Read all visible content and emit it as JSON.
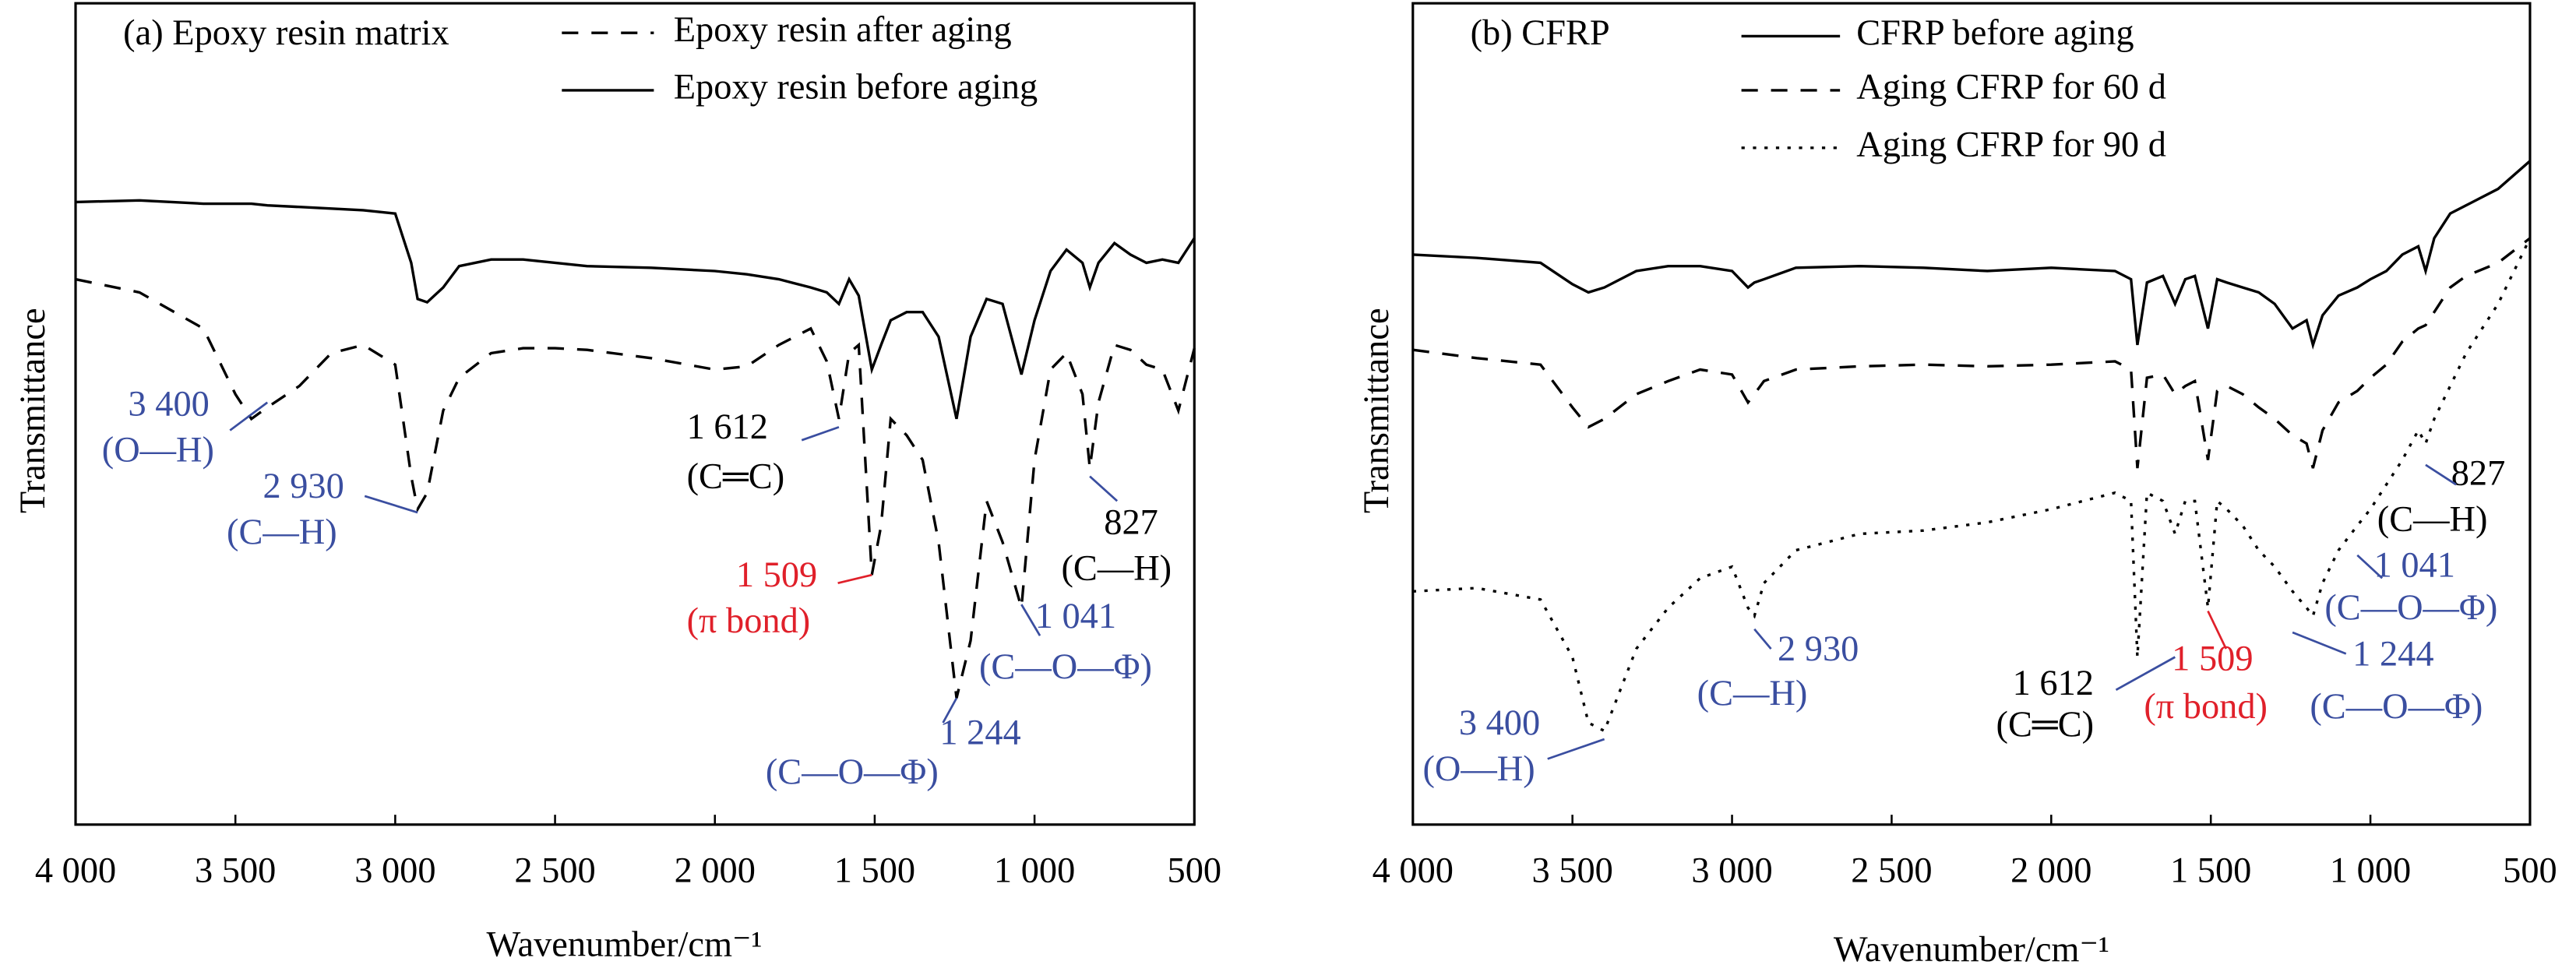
{
  "chart_data": [
    {
      "type": "line",
      "title": "(a) Epoxy resin matrix",
      "x_label": "Wavenumber/cm⁻¹",
      "y_label": "Transmittance",
      "xlim": [
        4000,
        500
      ],
      "ylim": [
        0,
        100
      ],
      "xticks": [
        {
          "value": 4000,
          "label": "4 000"
        },
        {
          "value": 3500,
          "label": "3 500"
        },
        {
          "value": 3000,
          "label": "3 000"
        },
        {
          "value": 2500,
          "label": "2 500"
        },
        {
          "value": 2000,
          "label": "2 000"
        },
        {
          "value": 1500,
          "label": "1 500"
        },
        {
          "value": 1000,
          "label": "1 000"
        },
        500
      ],
      "x": [
        4000,
        3800,
        3600,
        3500,
        3450,
        3400,
        3300,
        3200,
        3100,
        3000,
        2950,
        2930,
        2900,
        2850,
        2800,
        2700,
        2600,
        2500,
        2400,
        2200,
        2000,
        1900,
        1800,
        1700,
        1650,
        1612,
        1580,
        1550,
        1509,
        1480,
        1450,
        1400,
        1350,
        1300,
        1244,
        1200,
        1150,
        1100,
        1041,
        1000,
        950,
        900,
        850,
        827,
        800,
        750,
        700,
        650,
        600,
        550,
        500
      ],
      "series": [
        {
          "name": "Epoxy resin after aging",
          "color": "#000000",
          "style": "dashed",
          "values": [
            66.4,
            64.8,
            60.4,
            52.4,
            49.4,
            50.8,
            53.4,
            57.4,
            58.4,
            56,
            42.4,
            38.4,
            40.4,
            50.4,
            54.4,
            57.4,
            58,
            58,
            57.8,
            56.8,
            55.4,
            55.8,
            58.4,
            60.4,
            56.4,
            49.4,
            57.4,
            58.4,
            30.4,
            36.4,
            49.4,
            47.4,
            44.4,
            34.4,
            15.4,
            22.4,
            39.4,
            34.4,
            26.4,
            44.4,
            55.4,
            57.4,
            52.4,
            43.4,
            51.4,
            58.4,
            57.8,
            56,
            55.4,
            50.4,
            58
          ]
        },
        {
          "name": "Epoxy resin before aging",
          "color": "#000000",
          "style": "solid",
          "values": [
            75.8,
            76,
            75.6,
            75.6,
            75.6,
            75.4,
            75.2,
            75,
            74.8,
            74.4,
            68.4,
            64,
            63.6,
            65.4,
            68,
            68.8,
            68.8,
            68.4,
            68,
            67.8,
            67.4,
            67,
            66.4,
            65.4,
            64.8,
            63.4,
            66.4,
            64.4,
            55.4,
            58.4,
            61.4,
            62.4,
            62.4,
            59.4,
            49.4,
            59.4,
            64,
            63.4,
            54.8,
            61.4,
            67.4,
            70,
            68.4,
            65.4,
            68.4,
            70.8,
            69.4,
            68.4,
            68.8,
            68.4,
            71.4
          ]
        }
      ],
      "annotations": [
        {
          "value": 3400,
          "label": "3 400",
          "bond": "(O—H)",
          "color": "#3a4ea0"
        },
        {
          "value": 2930,
          "label": "2 930",
          "bond": "(C—H)",
          "color": "#3a4ea0"
        },
        {
          "value": 1612,
          "label": "1 612",
          "bond": "(C═C)",
          "color": "#000000"
        },
        {
          "value": 1509,
          "label": "1 509",
          "bond": "(π bond)",
          "color": "#e0202a"
        },
        {
          "value": 827,
          "label": "827",
          "bond": "(C—H)",
          "color": "#000000"
        },
        {
          "value": 1041,
          "label": "1 041",
          "bond": "(C—O—Φ)",
          "color": "#3a4ea0"
        },
        {
          "value": 1244,
          "label": "1 244",
          "bond": "(C—O—Φ)",
          "color": "#3a4ea0"
        }
      ]
    },
    {
      "type": "line",
      "title": "(b) CFRP",
      "x_label": "Wavenumber/cm⁻¹",
      "y_label": "Transmittance",
      "xlim": [
        4000,
        500
      ],
      "ylim": [
        0,
        100
      ],
      "xticks": [
        {
          "value": 4000,
          "label": "4 000"
        },
        {
          "value": 3500,
          "label": "3 500"
        },
        {
          "value": 3000,
          "label": "3 000"
        },
        {
          "value": 2500,
          "label": "2 500"
        },
        {
          "value": 2000,
          "label": "2 000"
        },
        {
          "value": 1500,
          "label": "1 500"
        },
        {
          "value": 1000,
          "label": "1 000"
        },
        500
      ],
      "x": [
        4000,
        3800,
        3600,
        3500,
        3450,
        3400,
        3300,
        3200,
        3100,
        3000,
        2950,
        2930,
        2900,
        2800,
        2600,
        2400,
        2200,
        2000,
        1800,
        1750,
        1730,
        1700,
        1650,
        1612,
        1580,
        1550,
        1509,
        1480,
        1450,
        1400,
        1350,
        1300,
        1244,
        1200,
        1180,
        1150,
        1100,
        1041,
        1000,
        950,
        900,
        850,
        827,
        800,
        750,
        700,
        600,
        500
      ],
      "series": [
        {
          "name": "CFRP before aging",
          "color": "#000000",
          "style": "solid",
          "values": [
            69.4,
            69,
            68.4,
            65.8,
            64.8,
            65.4,
            67.4,
            68,
            68,
            67.4,
            65.4,
            66,
            66.4,
            67.8,
            68,
            67.8,
            67.4,
            67.8,
            67.4,
            66.4,
            58.4,
            66,
            66.8,
            63.4,
            66.4,
            66.8,
            60.4,
            66.4,
            66,
            65.4,
            64.8,
            63.4,
            60.4,
            61.4,
            58.4,
            62,
            64.4,
            65.4,
            66.4,
            67.4,
            69.4,
            70.4,
            67.4,
            71.4,
            74.4,
            75.4,
            77.4,
            80.8
          ]
        },
        {
          "name": "Aging CFRP for 60 d",
          "color": "#000000",
          "style": "dashed",
          "values": [
            57.8,
            56.8,
            56,
            50.8,
            48.4,
            49.4,
            52.4,
            54,
            55.4,
            54.8,
            51.4,
            52.4,
            54,
            55.4,
            55.8,
            56,
            55.8,
            56,
            56.4,
            55.4,
            43.4,
            54.4,
            54.8,
            52.4,
            53.4,
            54,
            44.4,
            52.8,
            53.4,
            52.4,
            50.8,
            49.4,
            47.4,
            46.4,
            43.4,
            48,
            51.4,
            52.8,
            54.4,
            56,
            58.8,
            60.4,
            60.8,
            62.4,
            65.4,
            66.8,
            68.4,
            71.4
          ]
        },
        {
          "name": "Aging CFRP for 90 d",
          "color": "#000000",
          "style": "dotted",
          "values": [
            28.4,
            28.8,
            27.4,
            20.4,
            12.4,
            11.4,
            21.4,
            26.4,
            30,
            31.4,
            26.4,
            25.4,
            29.4,
            33.4,
            35.4,
            35.8,
            36.8,
            38.4,
            40.4,
            39.4,
            20.4,
            40.4,
            39.4,
            35.4,
            39.4,
            39.4,
            26.4,
            39.4,
            38.4,
            36.4,
            33.4,
            31.4,
            28.4,
            26.4,
            25.4,
            29.4,
            33.4,
            36.4,
            38.4,
            41.4,
            44.4,
            48,
            46.4,
            49.4,
            53.4,
            57.4,
            63.4,
            71.4
          ]
        }
      ],
      "annotations": [
        {
          "value": 3400,
          "label": "3 400",
          "bond": "(O—H)",
          "color": "#3a4ea0"
        },
        {
          "value": 2930,
          "label": "2 930",
          "bond": "(C—H)",
          "color": "#3a4ea0"
        },
        {
          "value": 1612,
          "label": "1 612",
          "bond": "(C═C)",
          "color": "#000000"
        },
        {
          "value": 1509,
          "label": "1 509",
          "bond": "(π bond)",
          "color": "#e0202a"
        },
        {
          "value": 1244,
          "label": "1 244",
          "bond": "(C—O—Φ)",
          "color": "#3a4ea0"
        },
        {
          "value": 1041,
          "label": "1 041",
          "bond": "(C—O—Φ)",
          "color": "#3a4ea0"
        },
        {
          "value": 827,
          "label": "827",
          "bond": "(C—H)",
          "color": "#000000"
        }
      ]
    }
  ]
}
